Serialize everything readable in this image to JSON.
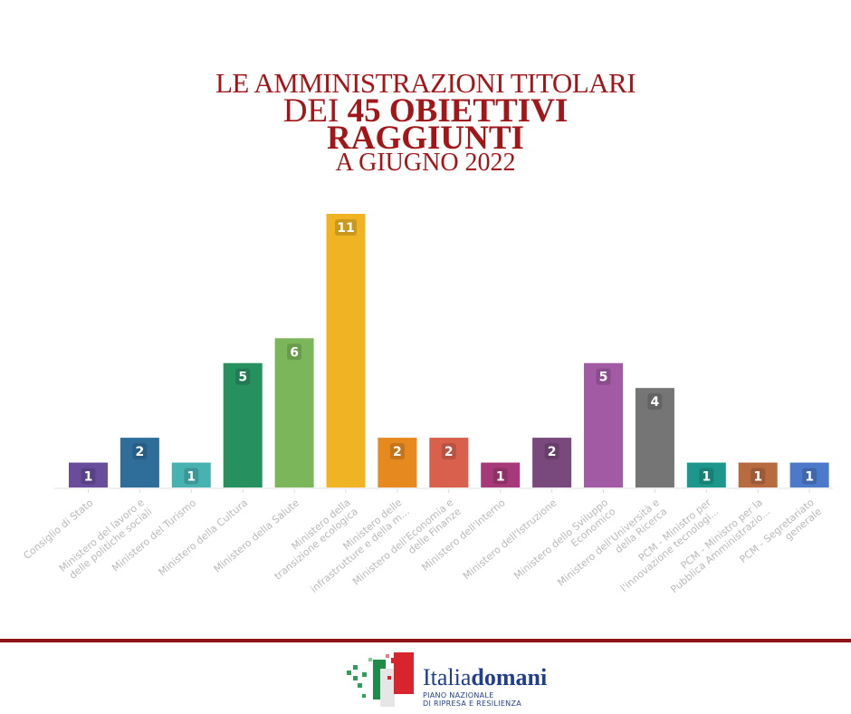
{
  "header": {
    "line1": "LE AMMINISTRAZIONI TITOLARI",
    "line2_prefix": "DEI ",
    "line2_bold": "45 OBIETTIVI",
    "line3": "RAGGIUNTI",
    "line4": "A GIUGNO 2022"
  },
  "footer": {
    "brand_light": "Italia",
    "brand_bold": "domani",
    "subtitle1": "PIANO NAZIONALE",
    "subtitle2": "DI RIPRESA E RESILIENZA"
  },
  "chart_data": {
    "type": "bar",
    "title": "LE AMMINISTRAZIONI TITOLARI DEI 45 OBIETTIVI RAGGIUNTI A GIUGNO 2022",
    "xlabel": "",
    "ylabel": "",
    "ylim": [
      0,
      11
    ],
    "grid": false,
    "legend": "none",
    "categories": [
      [
        "Consiglio di Stato"
      ],
      [
        "Ministero del lavoro e",
        "delle politiche sociali"
      ],
      [
        "Ministero del Turismo"
      ],
      [
        "Ministero della Cultura"
      ],
      [
        "Ministero della Salute"
      ],
      [
        "Ministero della",
        "transizione ecologica"
      ],
      [
        "Ministero delle",
        "infrastrutture e della m..."
      ],
      [
        "Ministero dell'Economia e",
        "delle Finanze"
      ],
      [
        "Ministero dell'Interno"
      ],
      [
        "Ministero dell'Istruzione"
      ],
      [
        "Ministero dello Sviluppo",
        "Economico"
      ],
      [
        "Ministero dell'Università e",
        "della Ricerca"
      ],
      [
        "PCM - Ministro per",
        "l'innovazione tecnologi..."
      ],
      [
        "PCM - Ministro per la",
        "Pubblica Amministrazio..."
      ],
      [
        "PCM - Segretariato",
        "generale"
      ]
    ],
    "values": [
      1,
      2,
      1,
      5,
      6,
      11,
      2,
      2,
      1,
      2,
      5,
      4,
      1,
      1,
      1
    ],
    "colors": [
      "#6a4c9c",
      "#2f6e9b",
      "#47b2b0",
      "#27905f",
      "#7cb65a",
      "#efb323",
      "#e6891f",
      "#d9604c",
      "#a63a79",
      "#79497d",
      "#a15aa3",
      "#757575",
      "#1d968b",
      "#b86b3f",
      "#4c79c9"
    ]
  }
}
